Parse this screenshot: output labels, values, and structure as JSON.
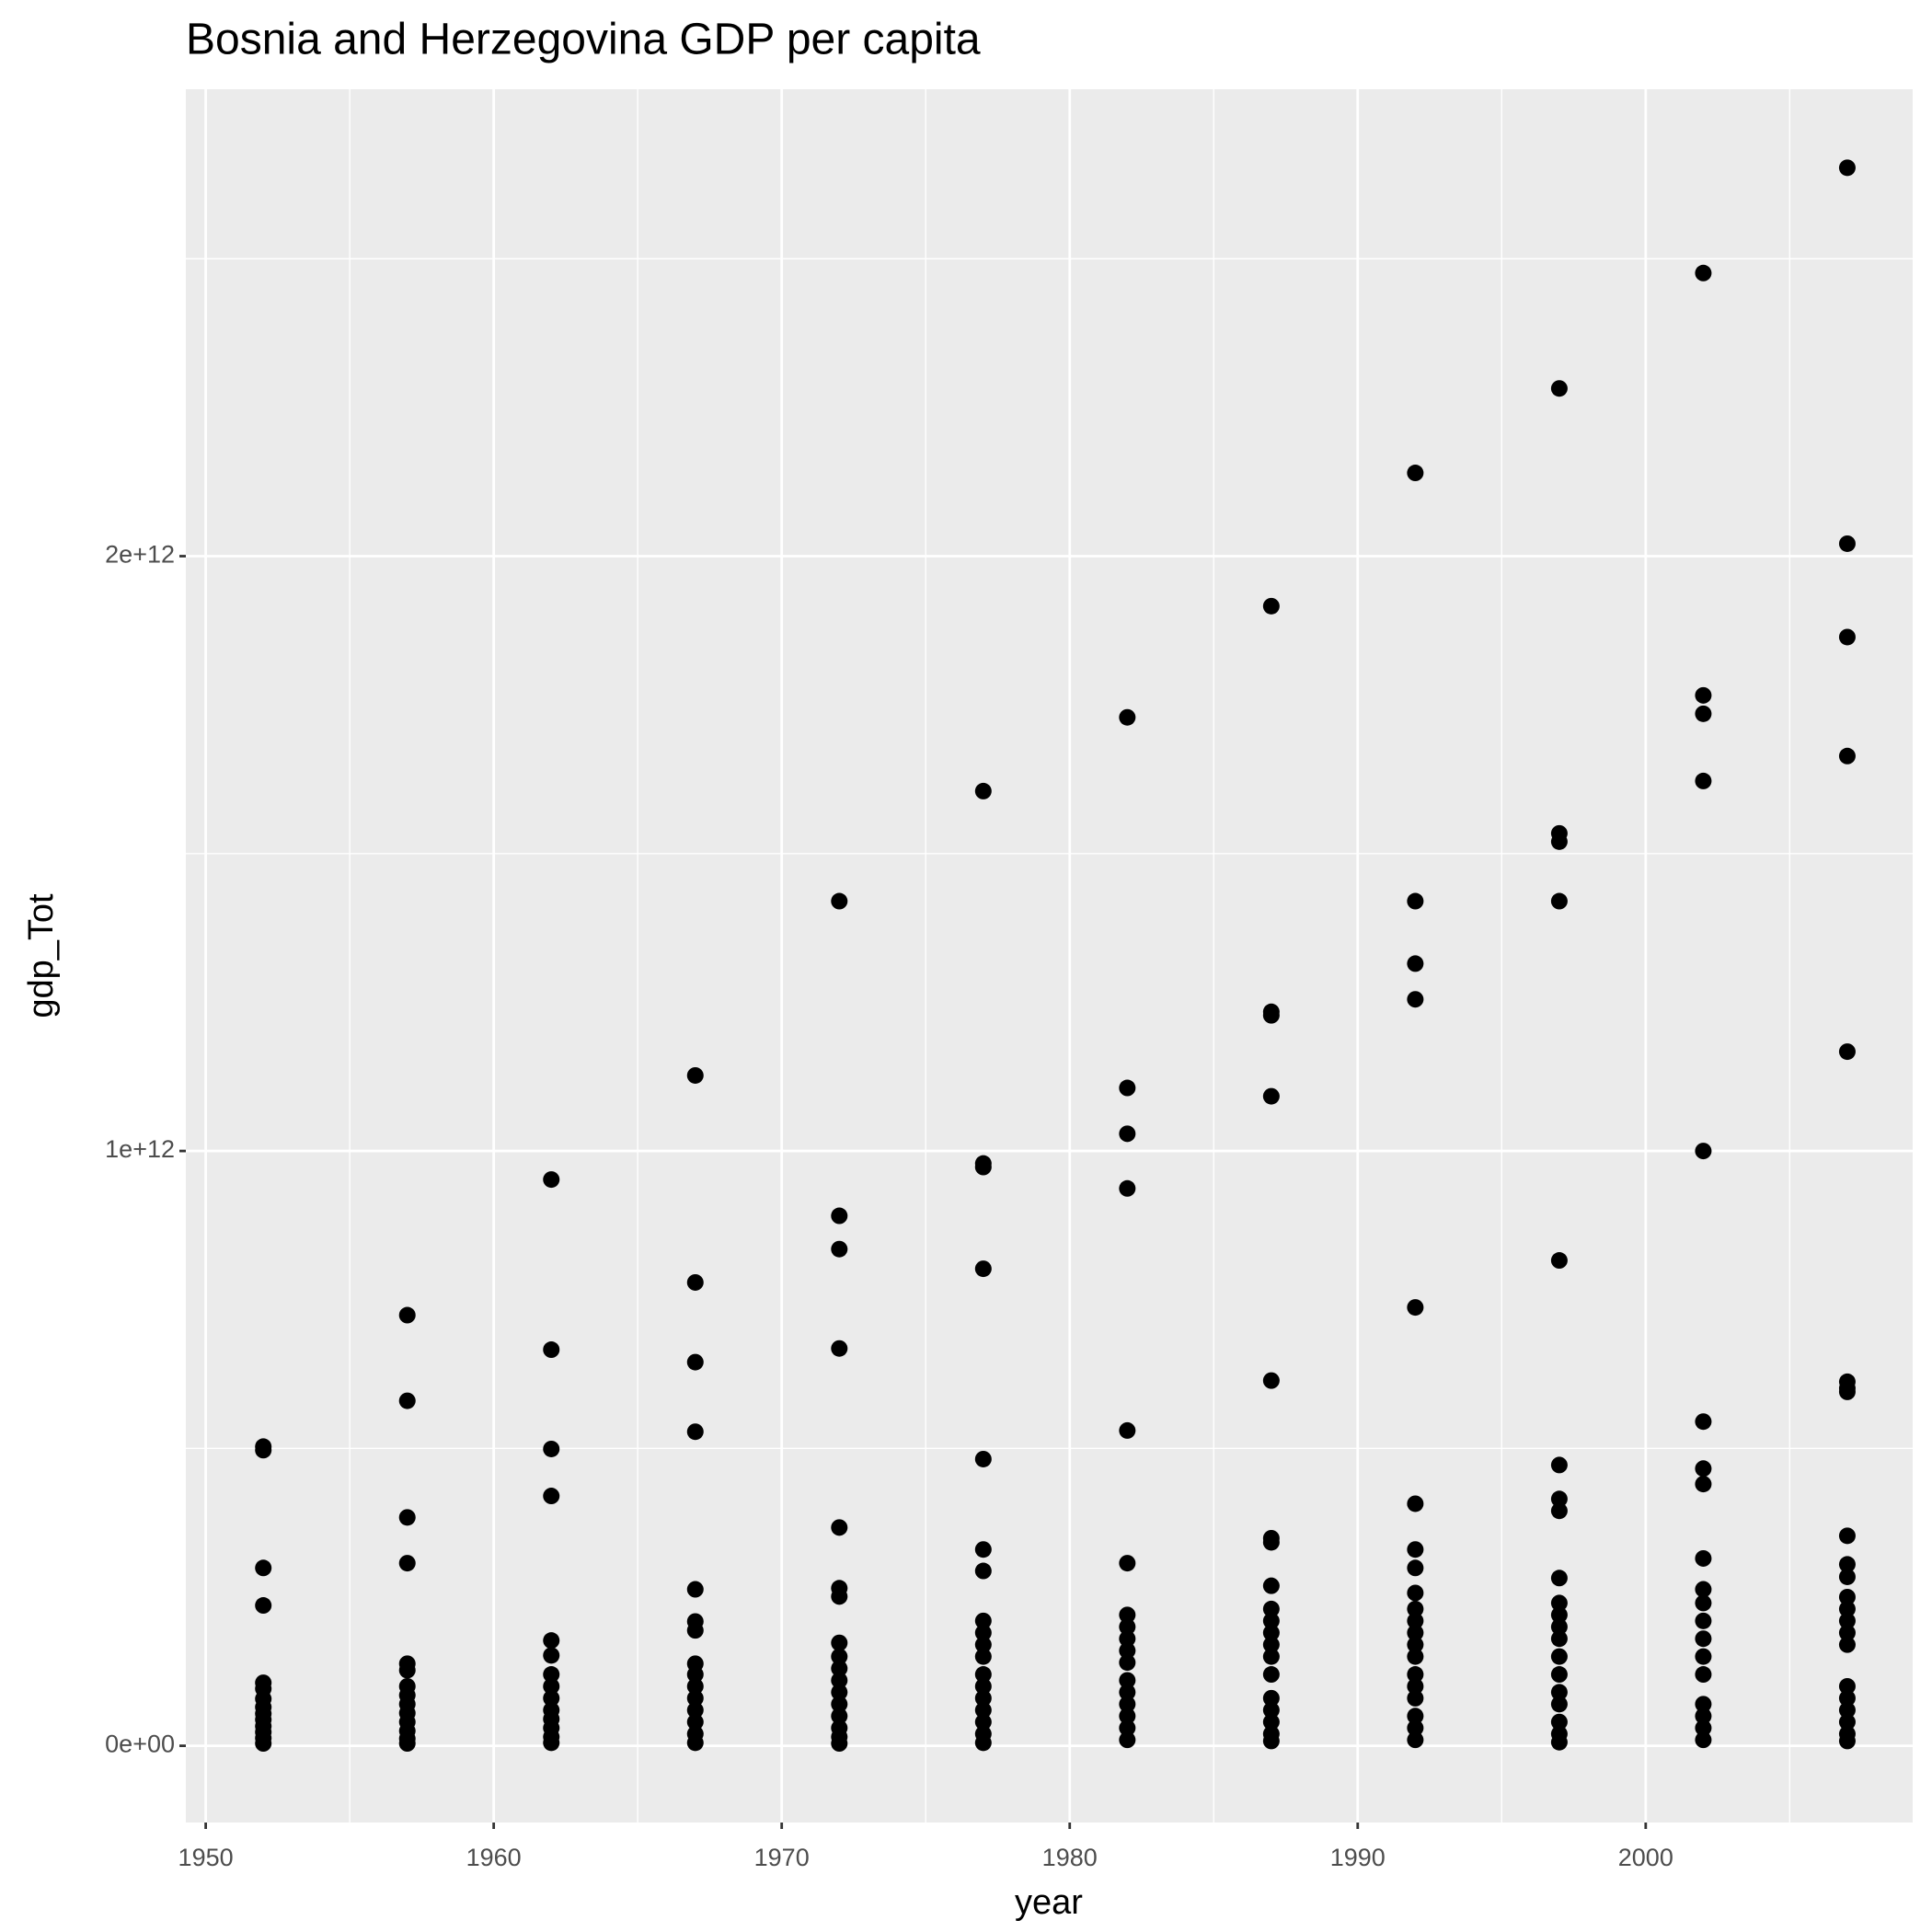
{
  "chart_data": {
    "type": "scatter",
    "title": "Bosnia and Herzegovina GDP per capita",
    "x_label": "year",
    "y_label": "gdp_Tot",
    "color": "#000000",
    "grid": true,
    "xlim": [
      1949.31,
      2009.27
    ],
    "xticks": [
      1950,
      1960,
      1970,
      1980,
      1990,
      2000
    ],
    "minor_xticks": [
      1955,
      1965,
      1975,
      1985,
      1995,
      2005
    ],
    "ylim": [
      -129000000000.0,
      2785000000000.0
    ],
    "yticks": [
      {
        "value": 0,
        "label": "0e+00"
      },
      {
        "value": 1000000000000.0,
        "label": "1e+12"
      },
      {
        "value": 2000000000000.0,
        "label": "2e+12"
      }
    ],
    "minor_yticks": [
      500000000000.0,
      1500000000000.0,
      2500000000000.0
    ],
    "x": [
      1952,
      1952,
      1952,
      1952,
      1952,
      1952,
      1952,
      1952,
      1952,
      1952,
      1952,
      1952,
      1952,
      1952,
      1957,
      1957,
      1957,
      1957,
      1957,
      1957,
      1957,
      1957,
      1957,
      1957,
      1957,
      1957,
      1957,
      1957,
      1962,
      1962,
      1962,
      1962,
      1962,
      1962,
      1962,
      1962,
      1962,
      1962,
      1962,
      1962,
      1962,
      1962,
      1967,
      1967,
      1967,
      1967,
      1967,
      1967,
      1967,
      1967,
      1967,
      1967,
      1967,
      1967,
      1967,
      1967,
      1967,
      1972,
      1972,
      1972,
      1972,
      1972,
      1972,
      1972,
      1972,
      1972,
      1972,
      1972,
      1972,
      1972,
      1972,
      1972,
      1972,
      1972,
      1977,
      1977,
      1977,
      1977,
      1977,
      1977,
      1977,
      1977,
      1977,
      1977,
      1977,
      1977,
      1977,
      1977,
      1977,
      1977,
      1977,
      1977,
      1982,
      1982,
      1982,
      1982,
      1982,
      1982,
      1982,
      1982,
      1982,
      1982,
      1982,
      1982,
      1982,
      1982,
      1982,
      1982,
      1982,
      1987,
      1987,
      1987,
      1987,
      1987,
      1987,
      1987,
      1987,
      1987,
      1987,
      1987,
      1987,
      1987,
      1987,
      1987,
      1987,
      1987,
      1987,
      1987,
      1992,
      1992,
      1992,
      1992,
      1992,
      1992,
      1992,
      1992,
      1992,
      1992,
      1992,
      1992,
      1992,
      1992,
      1992,
      1992,
      1992,
      1992,
      1992,
      1992,
      1997,
      1997,
      1997,
      1997,
      1997,
      1997,
      1997,
      1997,
      1997,
      1997,
      1997,
      1997,
      1997,
      1997,
      1997,
      1997,
      1997,
      1997,
      1997,
      1997,
      2002,
      2002,
      2002,
      2002,
      2002,
      2002,
      2002,
      2002,
      2002,
      2002,
      2002,
      2002,
      2002,
      2002,
      2002,
      2002,
      2002,
      2002,
      2002,
      2007,
      2007,
      2007,
      2007,
      2007,
      2007,
      2007,
      2007,
      2007,
      2007,
      2007,
      2007,
      2007,
      2007,
      2007,
      2007,
      2007,
      2007,
      2007,
      2007,
      2007,
      2007
    ],
    "values": [
      503000000000.0,
      497000000000.0,
      299000000000.0,
      236000000000.0,
      106000000000.0,
      96000000000.0,
      79000000000.0,
      65000000000.0,
      54000000000.0,
      44000000000.0,
      33000000000.0,
      23000000000.0,
      13000000000.0,
      4000000000.0,
      724000000000.0,
      580000000000.0,
      384000000000.0,
      307000000000.0,
      138000000000.0,
      127000000000.0,
      100000000000.0,
      85000000000.0,
      70000000000.0,
      55000000000.0,
      40000000000.0,
      25000000000.0,
      12000000000.0,
      4000000000.0,
      952000000000.0,
      666000000000.0,
      499000000000.0,
      420000000000.0,
      177000000000.0,
      152000000000.0,
      120000000000.0,
      100000000000.0,
      80000000000.0,
      60000000000.0,
      45000000000.0,
      30000000000.0,
      15000000000.0,
      5000000000.0,
      1127000000000.0,
      779000000000.0,
      645000000000.0,
      528000000000.0,
      263000000000.0,
      209000000000.0,
      194000000000.0,
      138000000000.0,
      120000000000.0,
      100000000000.0,
      80000000000.0,
      60000000000.0,
      40000000000.0,
      20000000000.0,
      5000000000.0,
      1420000000000.0,
      891000000000.0,
      835000000000.0,
      668000000000.0,
      367000000000.0,
      265000000000.0,
      251000000000.0,
      173000000000.0,
      150000000000.0,
      130000000000.0,
      110000000000.0,
      90000000000.0,
      70000000000.0,
      50000000000.0,
      30000000000.0,
      15000000000.0,
      4000000000.0,
      1605000000000.0,
      979000000000.0,
      973000000000.0,
      802000000000.0,
      482000000000.0,
      330000000000.0,
      294000000000.0,
      210000000000.0,
      190000000000.0,
      170000000000.0,
      150000000000.0,
      120000000000.0,
      100000000000.0,
      80000000000.0,
      60000000000.0,
      40000000000.0,
      20000000000.0,
      5000000000.0,
      1729000000000.0,
      1106000000000.0,
      1029000000000.0,
      937000000000.0,
      530000000000.0,
      307000000000.0,
      220000000000.0,
      200000000000.0,
      180000000000.0,
      160000000000.0,
      140000000000.0,
      110000000000.0,
      90000000000.0,
      70000000000.0,
      50000000000.0,
      30000000000.0,
      10000000000.0,
      1916000000000.0,
      1234000000000.0,
      1228000000000.0,
      1092000000000.0,
      614000000000.0,
      349000000000.0,
      342000000000.0,
      269000000000.0,
      230000000000.0,
      210000000000.0,
      190000000000.0,
      170000000000.0,
      150000000000.0,
      120000000000.0,
      80000000000.0,
      60000000000.0,
      40000000000.0,
      20000000000.0,
      8000000000.0,
      2140000000000.0,
      1420000000000.0,
      1315000000000.0,
      1255000000000.0,
      737000000000.0,
      407000000000.0,
      330000000000.0,
      299000000000.0,
      257000000000.0,
      230000000000.0,
      210000000000.0,
      190000000000.0,
      170000000000.0,
      150000000000.0,
      120000000000.0,
      100000000000.0,
      80000000000.0,
      50000000000.0,
      30000000000.0,
      10000000000.0,
      2282000000000.0,
      1534000000000.0,
      1520000000000.0,
      1420000000000.0,
      816000000000.0,
      472000000000.0,
      415000000000.0,
      395000000000.0,
      282000000000.0,
      240000000000.0,
      220000000000.0,
      200000000000.0,
      180000000000.0,
      150000000000.0,
      120000000000.0,
      90000000000.0,
      70000000000.0,
      40000000000.0,
      20000000000.0,
      6000000000.0,
      2476000000000.0,
      1766000000000.0,
      1735000000000.0,
      1622000000000.0,
      1000000000000.0,
      545000000000.0,
      466000000000.0,
      440000000000.0,
      315000000000.0,
      263000000000.0,
      240000000000.0,
      210000000000.0,
      180000000000.0,
      150000000000.0,
      120000000000.0,
      70000000000.0,
      50000000000.0,
      30000000000.0,
      10000000000.0,
      2653000000000.0,
      2021000000000.0,
      1864000000000.0,
      1664000000000.0,
      1167000000000.0,
      612000000000.0,
      601000000000.0,
      595000000000.0,
      353000000000.0,
      305000000000.0,
      284000000000.0,
      250000000000.0,
      230000000000.0,
      210000000000.0,
      190000000000.0,
      170000000000.0,
      100000000000.0,
      80000000000.0,
      60000000000.0,
      40000000000.0,
      20000000000.0,
      8000000000.0
    ]
  }
}
